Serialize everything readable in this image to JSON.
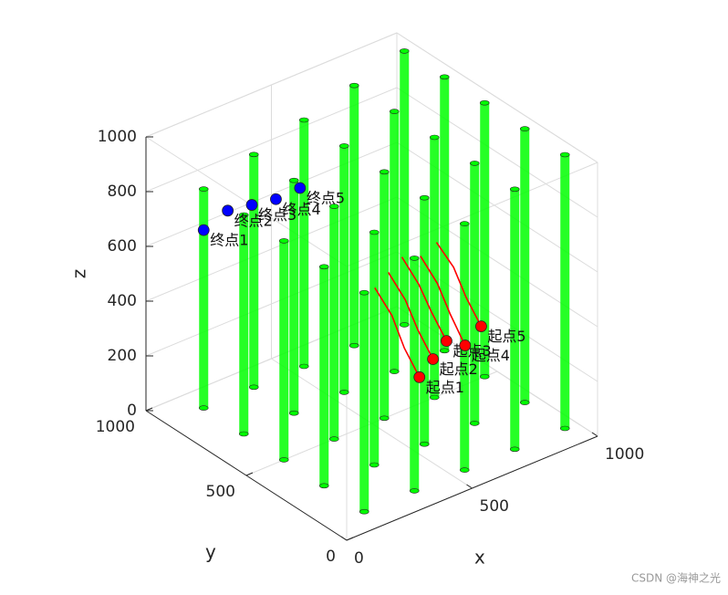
{
  "chart_data": {
    "type": "scatter3d",
    "xlabel": "x",
    "ylabel": "y",
    "zlabel": "z",
    "xlim": [
      0,
      1000
    ],
    "ylim": [
      0,
      1000
    ],
    "zlim": [
      0,
      1000
    ],
    "xticks": [
      0,
      500,
      1000
    ],
    "yticks": [
      0,
      500,
      1000
    ],
    "zticks": [
      0,
      200,
      400,
      600,
      800,
      1000
    ],
    "grid": true,
    "obstacle_color": "#00ff00",
    "obstacles": [
      {
        "x": 150,
        "y": 900,
        "height": 800
      },
      {
        "x": 350,
        "y": 900,
        "height": 850
      },
      {
        "x": 550,
        "y": 900,
        "height": 900
      },
      {
        "x": 750,
        "y": 900,
        "height": 950
      },
      {
        "x": 950,
        "y": 900,
        "height": 1000
      },
      {
        "x": 150,
        "y": 700,
        "height": 800
      },
      {
        "x": 350,
        "y": 700,
        "height": 850
      },
      {
        "x": 550,
        "y": 700,
        "height": 900
      },
      {
        "x": 750,
        "y": 700,
        "height": 950
      },
      {
        "x": 950,
        "y": 700,
        "height": 1000
      },
      {
        "x": 150,
        "y": 500,
        "height": 800
      },
      {
        "x": 350,
        "y": 500,
        "height": 850
      },
      {
        "x": 550,
        "y": 500,
        "height": 900
      },
      {
        "x": 750,
        "y": 500,
        "height": 950
      },
      {
        "x": 950,
        "y": 500,
        "height": 1000
      },
      {
        "x": 150,
        "y": 300,
        "height": 800
      },
      {
        "x": 350,
        "y": 300,
        "height": 850
      },
      {
        "x": 550,
        "y": 300,
        "height": 900
      },
      {
        "x": 750,
        "y": 300,
        "height": 950
      },
      {
        "x": 950,
        "y": 300,
        "height": 1000
      },
      {
        "x": 150,
        "y": 100,
        "height": 800
      },
      {
        "x": 350,
        "y": 100,
        "height": 850
      },
      {
        "x": 550,
        "y": 100,
        "height": 900
      },
      {
        "x": 750,
        "y": 100,
        "height": 950
      },
      {
        "x": 950,
        "y": 100,
        "height": 1000
      }
    ],
    "start_color": "#ff0000",
    "end_color": "#0000ff",
    "path_color": "#ff0000",
    "starts": [
      {
        "label": "起点1",
        "x": 450,
        "y": 200,
        "z": 330
      },
      {
        "label": "起点2",
        "x": 520,
        "y": 220,
        "z": 360
      },
      {
        "label": "起点3",
        "x": 590,
        "y": 240,
        "z": 390
      },
      {
        "label": "起点4",
        "x": 680,
        "y": 260,
        "z": 330
      },
      {
        "label": "起点5",
        "x": 760,
        "y": 280,
        "z": 360
      }
    ],
    "ends": [
      {
        "label": "终点1",
        "x": 150,
        "y": 900,
        "z": 650
      },
      {
        "label": "终点2",
        "x": 230,
        "y": 880,
        "z": 700
      },
      {
        "label": "终点3",
        "x": 310,
        "y": 860,
        "z": 700
      },
      {
        "label": "终点4",
        "x": 390,
        "y": 840,
        "z": 700
      },
      {
        "label": "终点5",
        "x": 470,
        "y": 820,
        "z": 720
      }
    ],
    "paths": [
      {
        "x": [
          450,
          430,
          420,
          400
        ],
        "y": [
          200,
          250,
          300,
          360
        ],
        "z": [
          330,
          420,
          520,
          600
        ]
      },
      {
        "x": [
          520,
          500,
          490,
          470
        ],
        "y": [
          220,
          270,
          320,
          380
        ],
        "z": [
          360,
          450,
          540,
          620
        ]
      },
      {
        "x": [
          590,
          570,
          560,
          540
        ],
        "y": [
          240,
          290,
          340,
          400
        ],
        "z": [
          390,
          480,
          560,
          640
        ]
      },
      {
        "x": [
          680,
          660,
          650,
          630
        ],
        "y": [
          260,
          310,
          360,
          420
        ],
        "z": [
          330,
          430,
          520,
          600
        ]
      },
      {
        "x": [
          760,
          740,
          730,
          710
        ],
        "y": [
          280,
          330,
          380,
          440
        ],
        "z": [
          360,
          450,
          540,
          610
        ]
      }
    ],
    "watermark": "CSDN @海神之光"
  }
}
